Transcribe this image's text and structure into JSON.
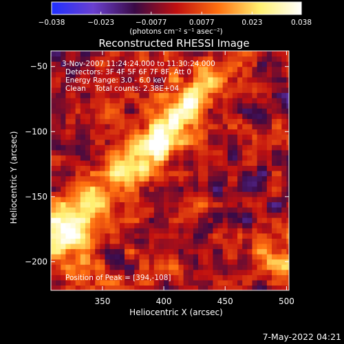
{
  "chart_data": {
    "type": "heatmap",
    "title": "Reconstructed RHESSI Image",
    "xlabel": "Heliocentric X (arcsec)",
    "ylabel": "Heliocentric Y (arcsec)",
    "xlim": [
      308,
      502
    ],
    "ylim": [
      -222,
      -38
    ],
    "xticks": [
      350,
      400,
      450,
      500
    ],
    "yticks": [
      -50,
      -100,
      -150,
      -200
    ],
    "colorbar": {
      "range": [
        -0.038,
        0.038
      ],
      "ticks": [
        -0.038,
        -0.023,
        -0.0077,
        0.0077,
        0.023,
        0.038
      ],
      "tick_labels": [
        "−0.038",
        "−0.023",
        "−0.0077",
        "0.0077",
        "0.023",
        "0.038"
      ],
      "unit_label": "(photons cm⁻² s⁻¹ asec⁻²)",
      "colors": [
        "#2030ff",
        "#6a40d0",
        "#3a0a45",
        "#c01010",
        "#ff7010",
        "#fff070",
        "#ffffff"
      ]
    },
    "annotations": {
      "time_range": "3-Nov-2007 11:24:24.000 to 11:30:24.000",
      "detectors": "Detectors: 3F 4F 5F 6F 7F 8F, Att 0",
      "energy": "Energy Range: 3.0 - 6.0 keV",
      "clean": "Clean    Total counts: 2.38E+04",
      "peak": "Position of Peak = [394,-108]"
    },
    "sources": [
      {
        "x": 400,
        "y": -100,
        "peak": 0.038,
        "shape": "elongated ridge, NE–SW"
      },
      {
        "x": 320,
        "y": -175,
        "peak": 0.03
      },
      {
        "x": 495,
        "y": -198,
        "peak": 0.022
      }
    ],
    "timestamp": "7-May-2022 04:21"
  }
}
